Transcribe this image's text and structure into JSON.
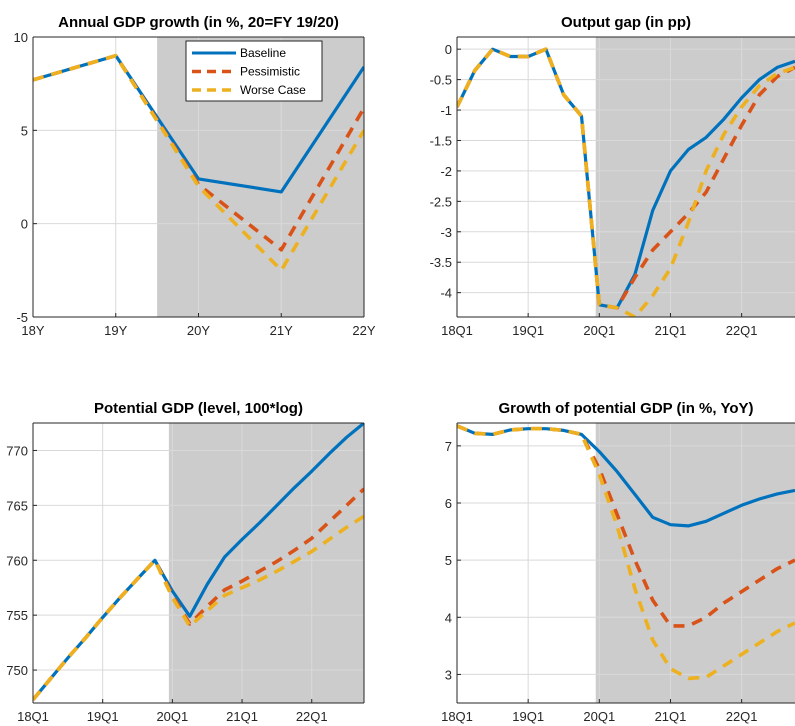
{
  "colors": {
    "baseline": "#0072BD",
    "pessimistic": "#D95319",
    "worse": "#EDB120",
    "shade": "#cccccc",
    "grid": "#d9d9d9"
  },
  "legend": {
    "entries": [
      "Baseline",
      "Pessimistic",
      "Worse Case"
    ]
  },
  "chart_data": [
    {
      "type": "line",
      "title": "Annual GDP growth (in %, 20=FY 19/20)",
      "xlabel": "",
      "ylabel": "",
      "x_ticks": [
        "18Y",
        "19Y",
        "20Y",
        "21Y",
        "22Y"
      ],
      "xlim": [
        0,
        4
      ],
      "ylim": [
        -5,
        10
      ],
      "y_ticks": [
        "-5",
        "0",
        "5",
        "10"
      ],
      "shaded_from": 1.5,
      "grid": true,
      "legend_position": "top-right",
      "series": [
        {
          "name": "Baseline",
          "x": [
            0,
            1,
            2,
            3,
            4
          ],
          "y": [
            7.7,
            9.0,
            2.4,
            1.7,
            8.4
          ]
        },
        {
          "name": "Pessimistic",
          "x": [
            0,
            1,
            2,
            3,
            4
          ],
          "y": [
            7.7,
            9.0,
            2.1,
            -1.4,
            6.2
          ]
        },
        {
          "name": "Worse Case",
          "x": [
            0,
            1,
            2,
            3,
            4
          ],
          "y": [
            7.7,
            9.0,
            2.0,
            -2.5,
            5.0
          ]
        }
      ]
    },
    {
      "type": "line",
      "title": "Output gap (in pp)",
      "xlabel": "",
      "ylabel": "",
      "x_ticks": [
        "18Q1",
        "19Q1",
        "20Q1",
        "21Q1",
        "22Q1"
      ],
      "xlim": [
        0,
        19
      ],
      "ylim": [
        -4.4,
        0.2
      ],
      "y_ticks": [
        "-4",
        "-3.5",
        "-3",
        "-2.5",
        "-2",
        "-1.5",
        "-1",
        "-0.5",
        "0"
      ],
      "shaded_from": 7.8,
      "grid": true,
      "series": [
        {
          "name": "Baseline",
          "x": [
            0,
            1,
            2,
            3,
            4,
            5,
            6,
            7,
            8,
            9,
            10,
            11,
            12,
            13,
            14,
            15,
            16,
            17,
            18,
            19
          ],
          "y": [
            -0.95,
            -0.35,
            0,
            -0.12,
            -0.12,
            0,
            -0.75,
            -1.1,
            -4.2,
            -4.25,
            -3.7,
            -2.65,
            -2.0,
            -1.65,
            -1.45,
            -1.15,
            -0.8,
            -0.5,
            -0.3,
            -0.2
          ]
        },
        {
          "name": "Pessimistic",
          "x": [
            0,
            1,
            2,
            3,
            4,
            5,
            6,
            7,
            8,
            9,
            10,
            11,
            12,
            13,
            14,
            15,
            16,
            17,
            18,
            19
          ],
          "y": [
            -0.95,
            -0.35,
            0,
            -0.12,
            -0.12,
            0,
            -0.75,
            -1.1,
            -4.2,
            -4.25,
            -3.75,
            -3.3,
            -3.0,
            -2.7,
            -2.35,
            -1.8,
            -1.25,
            -0.75,
            -0.45,
            -0.3
          ]
        },
        {
          "name": "Worse Case",
          "x": [
            0,
            1,
            2,
            3,
            4,
            5,
            6,
            7,
            8,
            9,
            10,
            11,
            12,
            13,
            14,
            15,
            16,
            17,
            18,
            19
          ],
          "y": [
            -0.95,
            -0.35,
            0,
            -0.12,
            -0.12,
            0,
            -0.75,
            -1.1,
            -4.2,
            -4.25,
            -4.4,
            -4.05,
            -3.6,
            -2.85,
            -2.0,
            -1.4,
            -0.95,
            -0.6,
            -0.4,
            -0.3
          ]
        }
      ]
    },
    {
      "type": "line",
      "title": "Potential GDP (level, 100*log)",
      "xlabel": "",
      "ylabel": "",
      "x_ticks": [
        "18Q1",
        "19Q1",
        "20Q1",
        "21Q1",
        "22Q1"
      ],
      "xlim": [
        0,
        19
      ],
      "ylim": [
        747,
        772.5
      ],
      "y_ticks": [
        "750",
        "755",
        "760",
        "765",
        "770"
      ],
      "shaded_from": 7.8,
      "grid": true,
      "series": [
        {
          "name": "Baseline",
          "x": [
            0,
            1,
            2,
            3,
            4,
            5,
            6,
            7,
            8,
            9,
            10,
            11,
            12,
            13,
            14,
            15,
            16,
            17,
            18,
            19
          ],
          "y": [
            747.3,
            749.2,
            751.1,
            752.9,
            754.8,
            756.6,
            758.3,
            760.0,
            757.2,
            754.9,
            757.8,
            760.3,
            761.9,
            763.4,
            765.0,
            766.6,
            768.1,
            769.7,
            771.2,
            772.5
          ]
        },
        {
          "name": "Pessimistic",
          "x": [
            0,
            1,
            2,
            3,
            4,
            5,
            6,
            7,
            8,
            9,
            10,
            11,
            12,
            13,
            14,
            15,
            16,
            17,
            18,
            19
          ],
          "y": [
            747.3,
            749.2,
            751.1,
            752.9,
            754.8,
            756.6,
            758.3,
            760.0,
            756.8,
            754.2,
            755.8,
            757.3,
            758.1,
            759.0,
            759.9,
            760.9,
            762.0,
            763.5,
            765.0,
            766.5
          ]
        },
        {
          "name": "Worse Case",
          "x": [
            0,
            1,
            2,
            3,
            4,
            5,
            6,
            7,
            8,
            9,
            10,
            11,
            12,
            13,
            14,
            15,
            16,
            17,
            18,
            19
          ],
          "y": [
            747.3,
            749.2,
            751.1,
            752.9,
            754.8,
            756.6,
            758.3,
            760.0,
            756.6,
            754.0,
            755.4,
            756.8,
            757.5,
            758.2,
            759.0,
            759.9,
            760.8,
            761.9,
            763.0,
            764.0
          ]
        }
      ]
    },
    {
      "type": "line",
      "title": "Growth of potential GDP (in %, YoY)",
      "xlabel": "",
      "ylabel": "",
      "x_ticks": [
        "18Q1",
        "19Q1",
        "20Q1",
        "21Q1",
        "22Q1"
      ],
      "xlim": [
        0,
        19
      ],
      "ylim": [
        2.5,
        7.4
      ],
      "y_ticks": [
        "3",
        "4",
        "5",
        "6",
        "7"
      ],
      "shaded_from": 7.8,
      "grid": true,
      "series": [
        {
          "name": "Baseline",
          "x": [
            0,
            1,
            2,
            3,
            4,
            5,
            6,
            7,
            8,
            9,
            10,
            11,
            12,
            13,
            14,
            15,
            16,
            17,
            18,
            19
          ],
          "y": [
            7.35,
            7.22,
            7.2,
            7.28,
            7.3,
            7.3,
            7.27,
            7.2,
            6.9,
            6.55,
            6.15,
            5.75,
            5.62,
            5.6,
            5.68,
            5.82,
            5.96,
            6.07,
            6.16,
            6.22
          ]
        },
        {
          "name": "Pessimistic",
          "x": [
            0,
            1,
            2,
            3,
            4,
            5,
            6,
            7,
            8,
            9,
            10,
            11,
            12,
            13,
            14,
            15,
            16,
            17,
            18,
            19
          ],
          "y": [
            7.35,
            7.22,
            7.2,
            7.28,
            7.3,
            7.3,
            7.27,
            7.2,
            6.6,
            5.8,
            5.0,
            4.3,
            3.85,
            3.85,
            4.0,
            4.25,
            4.45,
            4.65,
            4.85,
            5.0
          ]
        },
        {
          "name": "Worse Case",
          "x": [
            0,
            1,
            2,
            3,
            4,
            5,
            6,
            7,
            8,
            9,
            10,
            11,
            12,
            13,
            14,
            15,
            16,
            17,
            18,
            19
          ],
          "y": [
            7.35,
            7.22,
            7.2,
            7.28,
            7.3,
            7.3,
            7.27,
            7.2,
            6.5,
            5.6,
            4.5,
            3.6,
            3.1,
            2.93,
            2.95,
            3.15,
            3.35,
            3.55,
            3.75,
            3.9
          ]
        }
      ]
    }
  ]
}
